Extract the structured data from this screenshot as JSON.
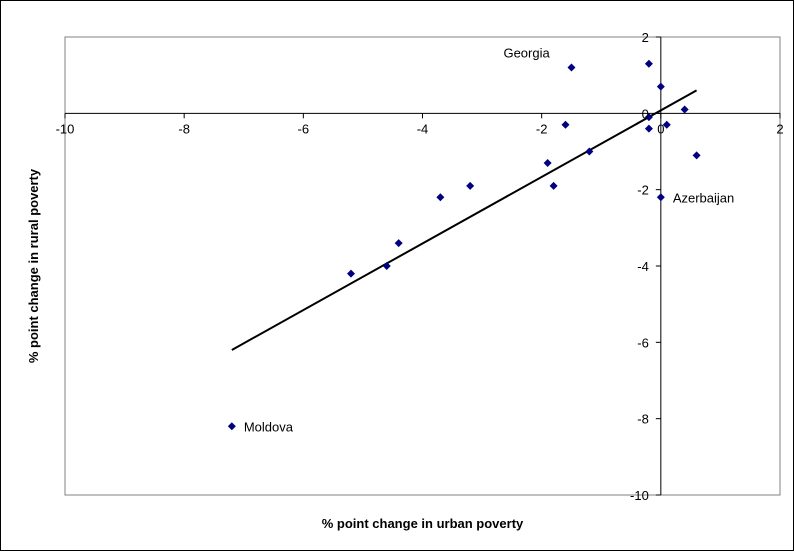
{
  "chart_data": {
    "type": "scatter",
    "title": "",
    "xlabel": "% point change in urban poverty",
    "ylabel": "% point change in rural poverty",
    "xlim": [
      -10,
      2
    ],
    "ylim": [
      -10,
      2
    ],
    "x_ticks": [
      -10,
      -8,
      -6,
      -4,
      -2,
      0,
      2
    ],
    "y_ticks": [
      -10,
      -8,
      -6,
      -4,
      -2,
      0,
      2
    ],
    "x_tick_labels": [
      "-10",
      "-8",
      "-6",
      "-4",
      "-2",
      "0",
      "2"
    ],
    "y_tick_labels": [
      "-10",
      "-8",
      "-6",
      "-4",
      "-2",
      "0",
      "2"
    ],
    "grid": false,
    "legend": "none",
    "marker_color": "#000080",
    "line_color": "#000000",
    "points": [
      {
        "x": -7.2,
        "y": -8.2
      },
      {
        "x": -5.2,
        "y": -4.2
      },
      {
        "x": -4.6,
        "y": -4.0
      },
      {
        "x": -4.4,
        "y": -3.4
      },
      {
        "x": -3.7,
        "y": -2.2
      },
      {
        "x": -3.2,
        "y": -1.9
      },
      {
        "x": -1.9,
        "y": -1.3
      },
      {
        "x": -1.8,
        "y": -1.9
      },
      {
        "x": -1.6,
        "y": -0.3
      },
      {
        "x": -1.5,
        "y": 1.2
      },
      {
        "x": -1.2,
        "y": -1.0
      },
      {
        "x": -0.2,
        "y": 1.3
      },
      {
        "x": -0.2,
        "y": -0.1
      },
      {
        "x": -0.2,
        "y": -0.4
      },
      {
        "x": 0.0,
        "y": 0.7
      },
      {
        "x": 0.1,
        "y": -0.3
      },
      {
        "x": 0.4,
        "y": 0.1
      },
      {
        "x": 0.6,
        "y": -1.1
      },
      {
        "x": 0.0,
        "y": -2.2
      }
    ],
    "annotations": [
      {
        "text": "Georgia",
        "x": -1.5,
        "y": 1.2
      },
      {
        "text": "Azerbaijan",
        "x": 0.0,
        "y": -2.2
      },
      {
        "text": "Moldova",
        "x": -7.2,
        "y": -8.2
      }
    ],
    "trendline": {
      "x": [
        -7.2,
        0.6
      ],
      "y": [
        -6.2,
        0.6
      ]
    }
  }
}
